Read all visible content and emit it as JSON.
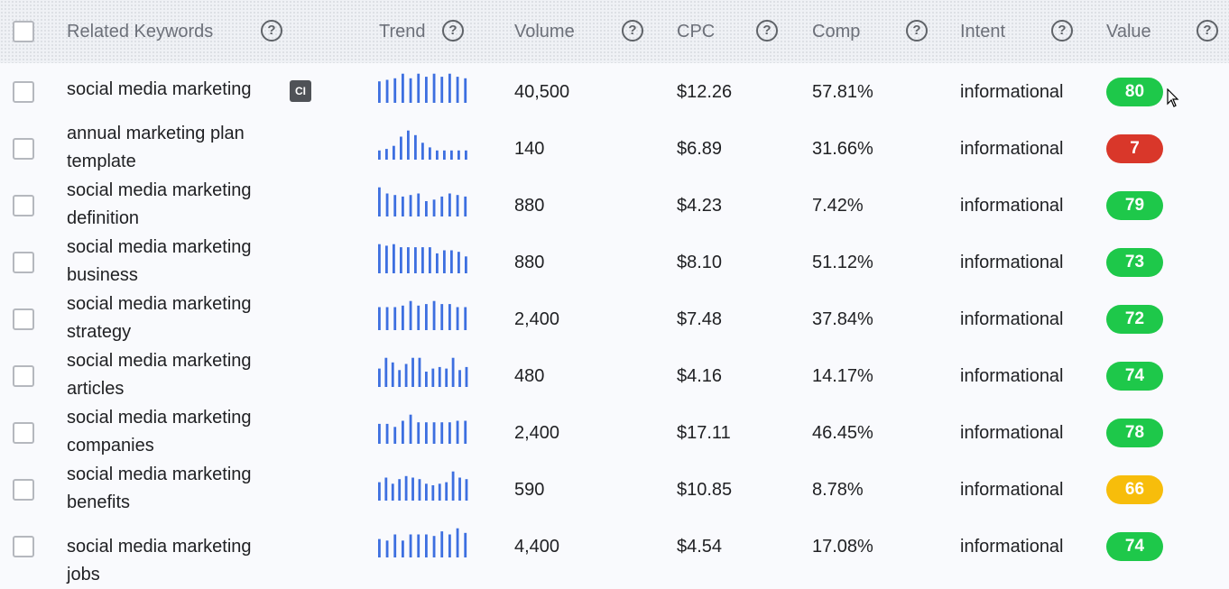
{
  "header": {
    "related_keywords": "Related Keywords",
    "trend": "Trend",
    "volume": "Volume",
    "cpc": "CPC",
    "comp": "Comp",
    "intent": "Intent",
    "value": "Value",
    "help_glyph": "?"
  },
  "ci_badge": "CI",
  "colors": {
    "green": "#1ec84a",
    "red": "#d9372a",
    "yellow": "#f7bd0b",
    "trend_bar": "#3d6fe0"
  },
  "rows": [
    {
      "keyword": "social media marketing",
      "volume": "40,500",
      "cpc": "$12.26",
      "comp": "57.81%",
      "intent": "informational",
      "value": "80",
      "value_color": "green",
      "trend": [
        0.7,
        0.75,
        0.8,
        0.95,
        0.8,
        0.95,
        0.85,
        0.95,
        0.85,
        0.95,
        0.85,
        0.8
      ]
    },
    {
      "keyword": "annual marketing plan template",
      "volume": "140",
      "cpc": "$6.89",
      "comp": "31.66%",
      "intent": "informational",
      "value": "7",
      "value_color": "red",
      "trend": [
        0.3,
        0.35,
        0.45,
        0.75,
        0.95,
        0.8,
        0.55,
        0.4,
        0.3,
        0.3,
        0.3,
        0.3,
        0.3
      ]
    },
    {
      "keyword": "social media marketing definition",
      "volume": "880",
      "cpc": "$4.23",
      "comp": "7.42%",
      "intent": "informational",
      "value": "79",
      "value_color": "green",
      "trend": [
        0.95,
        0.75,
        0.7,
        0.65,
        0.7,
        0.75,
        0.5,
        0.55,
        0.65,
        0.75,
        0.7,
        0.65
      ]
    },
    {
      "keyword": "social media marketing business",
      "volume": "880",
      "cpc": "$8.10",
      "comp": "51.12%",
      "intent": "informational",
      "value": "73",
      "value_color": "green",
      "trend": [
        0.95,
        0.9,
        0.95,
        0.85,
        0.85,
        0.85,
        0.85,
        0.85,
        0.65,
        0.75,
        0.75,
        0.7,
        0.55
      ]
    },
    {
      "keyword": "social media marketing strategy",
      "volume": "2,400",
      "cpc": "$7.48",
      "comp": "37.84%",
      "intent": "informational",
      "value": "72",
      "value_color": "green",
      "trend": [
        0.75,
        0.75,
        0.75,
        0.8,
        0.95,
        0.8,
        0.85,
        0.95,
        0.85,
        0.85,
        0.75,
        0.75
      ]
    },
    {
      "keyword": "social media marketing articles",
      "volume": "480",
      "cpc": "$4.16",
      "comp": "14.17%",
      "intent": "informational",
      "value": "74",
      "value_color": "green",
      "trend": [
        0.6,
        0.95,
        0.8,
        0.55,
        0.75,
        0.95,
        0.95,
        0.5,
        0.6,
        0.65,
        0.6,
        0.95,
        0.55,
        0.65
      ]
    },
    {
      "keyword": "social media marketing companies",
      "volume": "2,400",
      "cpc": "$17.11",
      "comp": "46.45%",
      "intent": "informational",
      "value": "78",
      "value_color": "green",
      "trend": [
        0.65,
        0.65,
        0.55,
        0.75,
        0.95,
        0.7,
        0.7,
        0.7,
        0.7,
        0.7,
        0.75,
        0.75
      ]
    },
    {
      "keyword": "social media marketing benefits",
      "volume": "590",
      "cpc": "$10.85",
      "comp": "8.78%",
      "intent": "informational",
      "value": "66",
      "value_color": "yellow",
      "trend": [
        0.6,
        0.75,
        0.55,
        0.7,
        0.8,
        0.75,
        0.7,
        0.55,
        0.5,
        0.55,
        0.6,
        0.95,
        0.75,
        0.7
      ]
    },
    {
      "keyword": "social media marketing jobs",
      "volume": "4,400",
      "cpc": "$4.54",
      "comp": "17.08%",
      "intent": "informational",
      "value": "74",
      "value_color": "green",
      "trend": [
        0.6,
        0.55,
        0.75,
        0.55,
        0.75,
        0.75,
        0.75,
        0.7,
        0.85,
        0.75,
        0.95,
        0.8
      ]
    }
  ]
}
